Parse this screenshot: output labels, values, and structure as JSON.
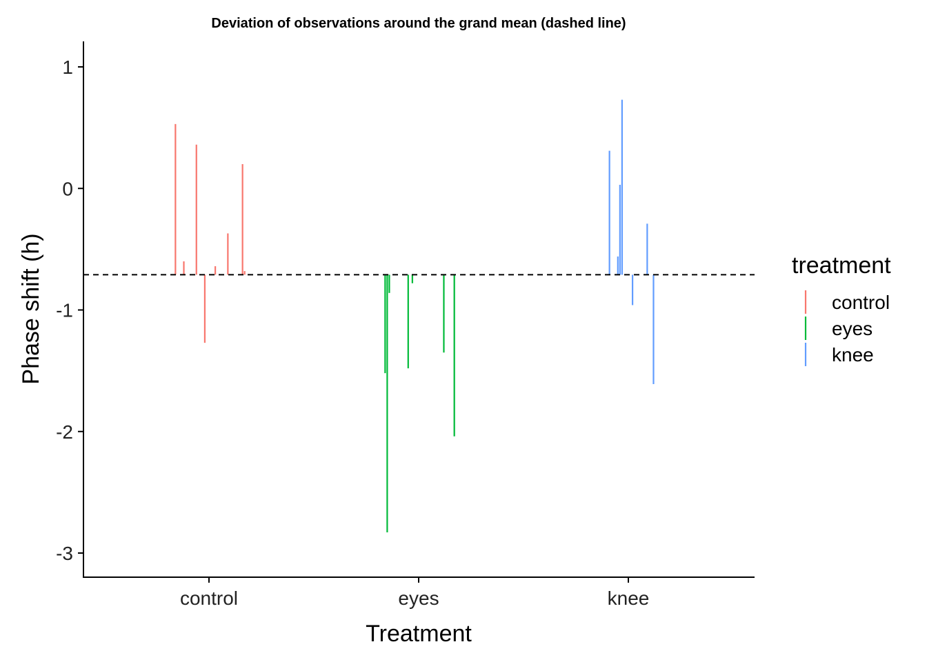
{
  "chart_data": {
    "type": "segment",
    "title": "Deviation of observations around the grand mean (dashed line)",
    "xlabel": "Treatment",
    "ylabel": "Phase shift (h)",
    "ylim": [
      -3.2,
      1.2
    ],
    "yticks": [
      1,
      0,
      -1,
      -2,
      -3
    ],
    "ytick_labels": [
      "1",
      "0",
      "-1",
      "-2",
      "-3"
    ],
    "categories": [
      "control",
      "eyes",
      "knee"
    ],
    "grand_mean": -0.71,
    "legend": {
      "title": "treatment",
      "position": "right",
      "entries": [
        "control",
        "eyes",
        "knee"
      ]
    },
    "colors": {
      "control": "#F8766D",
      "eyes": "#00BA38",
      "knee": "#619CFF",
      "axis": "#000000",
      "dashed": "#000000"
    },
    "series": [
      {
        "name": "control",
        "x": [
          -0.16,
          -0.12,
          -0.06,
          -0.02,
          0.03,
          0.09,
          0.16,
          0.17
        ],
        "y": [
          0.53,
          -0.6,
          0.36,
          -1.27,
          -0.64,
          -0.37,
          0.2,
          -0.68
        ]
      },
      {
        "name": "eyes",
        "x": [
          -0.16,
          -0.15,
          -0.14,
          -0.05,
          -0.03,
          0.12,
          0.17
        ],
        "y": [
          -1.52,
          -2.83,
          -0.86,
          -1.48,
          -0.78,
          -1.35,
          -2.04
        ]
      },
      {
        "name": "knee",
        "x": [
          -0.09,
          -0.05,
          -0.04,
          -0.03,
          0.02,
          0.09,
          0.12
        ],
        "y": [
          0.31,
          -0.56,
          0.03,
          0.73,
          -0.96,
          -0.29,
          -1.61
        ]
      }
    ]
  }
}
